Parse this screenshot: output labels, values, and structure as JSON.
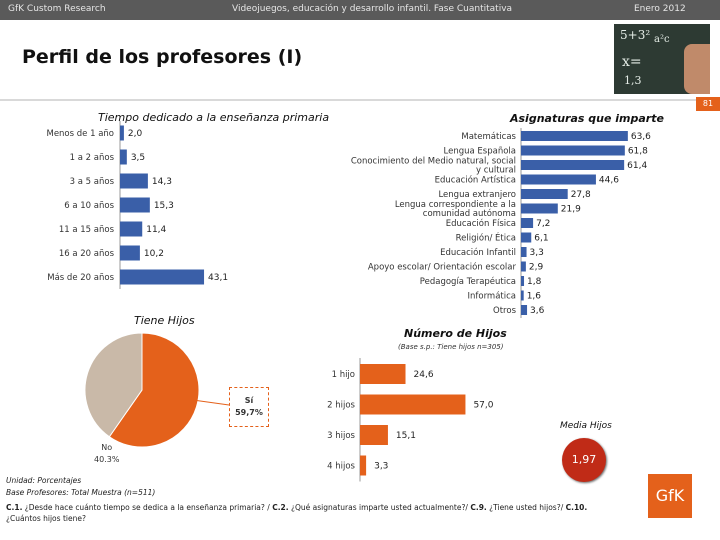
{
  "header": {
    "company": "GfK Custom Research",
    "study": "Videojuegos, educación y desarrollo infantil. Fase Cuantitativa",
    "date": "Enero 2012",
    "page_number": "81"
  },
  "page_title": "Perfil de los profesores (I)",
  "photo_chalk": [
    "5+3²",
    "a²c",
    "x=",
    "1,3"
  ],
  "colors": {
    "bar": "#3a5fa8",
    "orange": "#e4611b",
    "beige": "#c9b9a8",
    "header": "#5a5a5a"
  },
  "chart_data": [
    {
      "type": "bar",
      "orientation": "horizontal",
      "title": "Tiempo dedicado a la enseñanza primaria",
      "categories": [
        "Menos de 1 año",
        "1 a 2 años",
        "3 a 5 años",
        "6 a 10 años",
        "11 a 15 años",
        "16 a 20 años",
        "Más de 20 años"
      ],
      "values": [
        2.0,
        3.5,
        14.3,
        15.3,
        11.4,
        10.2,
        43.1
      ],
      "value_labels": [
        "2,0",
        "3,5",
        "14,3",
        "15,3",
        "11,4",
        "10,2",
        "43,1"
      ],
      "unit": "%"
    },
    {
      "type": "bar",
      "orientation": "horizontal",
      "title": "Asignaturas que imparte",
      "categories": [
        [
          "Matemáticas"
        ],
        [
          "Lengua Española"
        ],
        [
          "Conocimiento del Medio natural, social",
          "y cultural"
        ],
        [
          "Educación Artística"
        ],
        [
          "Lengua extranjero"
        ],
        [
          "Lengua correspondiente a la",
          "comunidad autónoma"
        ],
        [
          "Educación Física"
        ],
        [
          "Religión/ Ética"
        ],
        [
          "Educación Infantil"
        ],
        [
          "Apoyo escolar/ Orientación escolar"
        ],
        [
          "Pedagogía Terapéutica"
        ],
        [
          "Informática"
        ],
        [
          "Otros"
        ]
      ],
      "values": [
        63.6,
        61.8,
        61.4,
        44.6,
        27.8,
        21.9,
        7.2,
        6.1,
        3.3,
        2.9,
        1.8,
        1.6,
        3.6
      ],
      "value_labels": [
        "63,6",
        "61,8",
        "61,4",
        "44,6",
        "27,8",
        "21,9",
        "7,2",
        "6,1",
        "3,3",
        "2,9",
        "1,8",
        "1,6",
        "3,6"
      ],
      "unit": "%"
    },
    {
      "type": "pie",
      "title": "Tiene Hijos",
      "labels": [
        "Sí",
        "No"
      ],
      "values": [
        59.7,
        40.3
      ],
      "value_labels": [
        "59,7%",
        "40.3%"
      ]
    },
    {
      "type": "bar",
      "orientation": "horizontal",
      "title": "Número de Hijos",
      "subtitle": "(Base s.p.: Tiene hijos n=305)",
      "categories": [
        "1 hijo",
        "2 hijos",
        "3 hijos",
        "4 hijos"
      ],
      "values": [
        24.6,
        57.0,
        15.1,
        3.3
      ],
      "value_labels": [
        "24,6",
        "57,0",
        "15,1",
        "3,3"
      ],
      "unit": "%"
    }
  ],
  "media": {
    "label": "Media Hijos",
    "value": "1,97"
  },
  "footer": {
    "unit": "Unidad: Porcentajes",
    "base": "Base Profesores: Total Muestra (n=511)",
    "questions": [
      {
        "code": "C.1.",
        "text": " ¿Desde hace cuánto tiempo se dedica a la enseñanza primaria? / "
      },
      {
        "code": "C.2.",
        "text": " ¿Qué asignaturas imparte usted actualmente?/ "
      },
      {
        "code": "C.9.",
        "text": " ¿Tiene usted hijos?/ "
      },
      {
        "code": "C.10.",
        "text": " ¿Cuántos hijos tiene?"
      }
    ]
  },
  "logo": "GfK"
}
